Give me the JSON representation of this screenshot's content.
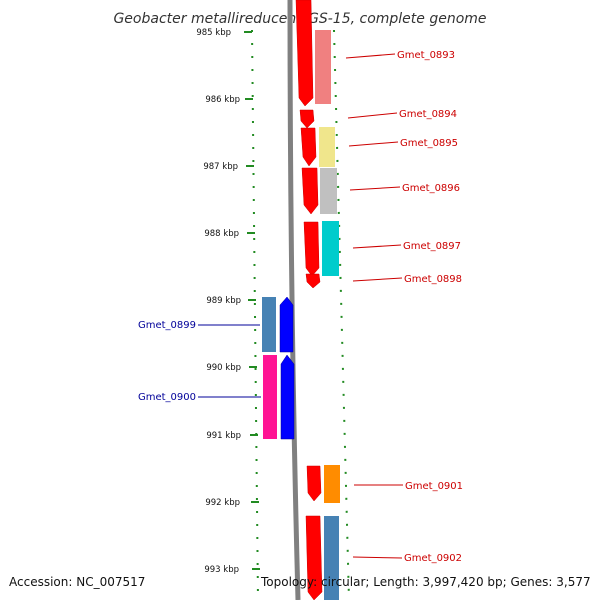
{
  "title": "Geobacter metallireducens GS-15, complete genome",
  "footer": {
    "accession": "Accession: NC_007517",
    "topology": "Topology: circular; Length: 3,997,420 bp; Genes: 3,577"
  },
  "ruler": {
    "ticks": [
      "985 kbp",
      "986 kbp",
      "987 kbp",
      "988 kbp",
      "989 kbp",
      "990 kbp",
      "991 kbp",
      "992 kbp",
      "993 kbp"
    ]
  },
  "colors": {
    "forward_strand_label": "#cc0000",
    "reverse_strand_label": "#000099",
    "forward_arrow": "#ff0000",
    "reverse_arrow": "#0000ff",
    "ruler_tick": "#228b22",
    "backbone": "#808080"
  },
  "genes": [
    {
      "name": "Gmet_0893",
      "strand": "+",
      "color": "#f08080"
    },
    {
      "name": "Gmet_0894",
      "strand": "+",
      "color": "#ff0000"
    },
    {
      "name": "Gmet_0895",
      "strand": "+",
      "color": "#f0e68c"
    },
    {
      "name": "Gmet_0896",
      "strand": "+",
      "color": "#c0c0c0"
    },
    {
      "name": "Gmet_0897",
      "strand": "+",
      "color": "#00cccc"
    },
    {
      "name": "Gmet_0898",
      "strand": "+",
      "color": "#ff0000"
    },
    {
      "name": "Gmet_0899",
      "strand": "-",
      "color": "#4682b4"
    },
    {
      "name": "Gmet_0900",
      "strand": "-",
      "color": "#ff1493"
    },
    {
      "name": "Gmet_0901",
      "strand": "+",
      "color": "#ff8c00"
    },
    {
      "name": "Gmet_0902",
      "strand": "+",
      "color": "#4682b4"
    }
  ]
}
